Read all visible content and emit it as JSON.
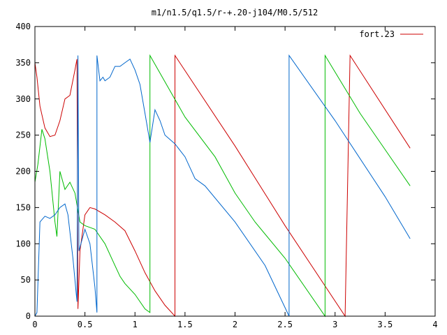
{
  "chart_data": {
    "type": "line",
    "title": "m1/n1.5/q1.5/r-+.20-j104/M0.5/512",
    "xlabel": "",
    "ylabel": "",
    "xlim": [
      0,
      4
    ],
    "ylim": [
      0,
      400
    ],
    "xticks": [
      0,
      0.5,
      1,
      1.5,
      2,
      2.5,
      3,
      3.5,
      4
    ],
    "xtick_labels": [
      "0",
      "0.5",
      "1",
      "1.5",
      "2",
      "2.5",
      "3",
      "3.5",
      "4"
    ],
    "yticks": [
      0,
      50,
      100,
      150,
      200,
      250,
      300,
      350,
      400
    ],
    "ytick_labels": [
      "0",
      "50",
      "100",
      "150",
      "200",
      "250",
      "300",
      "350",
      "400"
    ],
    "grid": false,
    "legend_position": "top-right",
    "legend": [
      "fort.23"
    ],
    "series": [
      {
        "name": "fort.23",
        "color": "#cc0000",
        "points": [
          [
            0.0,
            350
          ],
          [
            0.02,
            330
          ],
          [
            0.05,
            290
          ],
          [
            0.1,
            260
          ],
          [
            0.15,
            248
          ],
          [
            0.2,
            250
          ],
          [
            0.25,
            270
          ],
          [
            0.3,
            300
          ],
          [
            0.35,
            305
          ],
          [
            0.4,
            340
          ],
          [
            0.42,
            355
          ],
          [
            0.43,
            10
          ],
          [
            0.45,
            90
          ],
          [
            0.5,
            140
          ],
          [
            0.55,
            150
          ],
          [
            0.6,
            148
          ],
          [
            0.7,
            140
          ],
          [
            0.8,
            130
          ],
          [
            0.9,
            118
          ],
          [
            1.0,
            90
          ],
          [
            1.1,
            60
          ],
          [
            1.2,
            35
          ],
          [
            1.3,
            15
          ],
          [
            1.4,
            0
          ],
          [
            1.4,
            360
          ],
          [
            2.0,
            235
          ],
          [
            2.5,
            125
          ],
          [
            3.1,
            0
          ],
          [
            3.15,
            360
          ],
          [
            3.75,
            232
          ]
        ]
      },
      {
        "color": "#00bb00",
        "points": [
          [
            0.0,
            185
          ],
          [
            0.03,
            210
          ],
          [
            0.07,
            258
          ],
          [
            0.1,
            245
          ],
          [
            0.15,
            200
          ],
          [
            0.2,
            130
          ],
          [
            0.22,
            110
          ],
          [
            0.25,
            200
          ],
          [
            0.3,
            175
          ],
          [
            0.35,
            185
          ],
          [
            0.4,
            170
          ],
          [
            0.45,
            130
          ],
          [
            0.5,
            125
          ],
          [
            0.6,
            120
          ],
          [
            0.7,
            100
          ],
          [
            0.8,
            70
          ],
          [
            0.85,
            55
          ],
          [
            0.9,
            45
          ],
          [
            1.0,
            30
          ],
          [
            1.1,
            10
          ],
          [
            1.15,
            5
          ],
          [
            1.15,
            360
          ],
          [
            1.5,
            275
          ],
          [
            1.8,
            220
          ],
          [
            2.0,
            170
          ],
          [
            2.2,
            130
          ],
          [
            2.5,
            80
          ],
          [
            2.9,
            0
          ],
          [
            2.9,
            360
          ],
          [
            3.25,
            280
          ],
          [
            3.5,
            230
          ],
          [
            3.75,
            180
          ]
        ]
      },
      {
        "color": "#0066cc",
        "points": [
          [
            0.0,
            0
          ],
          [
            0.02,
            5
          ],
          [
            0.05,
            130
          ],
          [
            0.1,
            138
          ],
          [
            0.15,
            135
          ],
          [
            0.2,
            140
          ],
          [
            0.25,
            150
          ],
          [
            0.3,
            155
          ],
          [
            0.33,
            140
          ],
          [
            0.38,
            80
          ],
          [
            0.42,
            20
          ],
          [
            0.43,
            360
          ],
          [
            0.44,
            90
          ],
          [
            0.5,
            120
          ],
          [
            0.55,
            100
          ],
          [
            0.6,
            40
          ],
          [
            0.62,
            5
          ],
          [
            0.62,
            360
          ],
          [
            0.65,
            325
          ],
          [
            0.68,
            330
          ],
          [
            0.7,
            325
          ],
          [
            0.75,
            330
          ],
          [
            0.8,
            345
          ],
          [
            0.85,
            345
          ],
          [
            0.9,
            350
          ],
          [
            0.95,
            355
          ],
          [
            1.0,
            340
          ],
          [
            1.05,
            320
          ],
          [
            1.1,
            280
          ],
          [
            1.15,
            240
          ],
          [
            1.2,
            285
          ],
          [
            1.25,
            270
          ],
          [
            1.3,
            250
          ],
          [
            1.4,
            238
          ],
          [
            1.5,
            220
          ],
          [
            1.6,
            190
          ],
          [
            1.7,
            180
          ],
          [
            2.0,
            130
          ],
          [
            2.3,
            70
          ],
          [
            2.54,
            0
          ],
          [
            2.54,
            360
          ],
          [
            3.0,
            270
          ],
          [
            3.5,
            165
          ],
          [
            3.75,
            107
          ]
        ]
      }
    ]
  }
}
